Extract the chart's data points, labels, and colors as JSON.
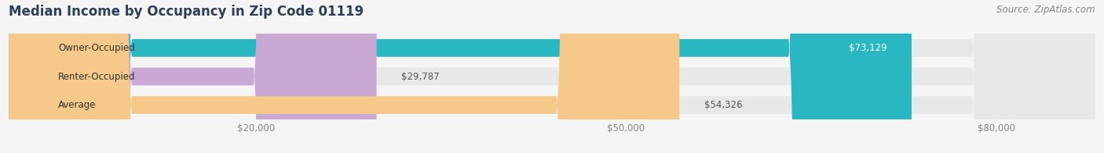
{
  "title": "Median Income by Occupancy in Zip Code 01119",
  "source": "Source: ZipAtlas.com",
  "categories": [
    "Owner-Occupied",
    "Renter-Occupied",
    "Average"
  ],
  "values": [
    73129,
    29787,
    54326
  ],
  "labels": [
    "$73,129",
    "$29,787",
    "$54,326"
  ],
  "bar_colors": [
    "#29b8c2",
    "#c9a8d4",
    "#f5c98a"
  ],
  "label_colors": [
    "white",
    "#555555",
    "#555555"
  ],
  "label_inside": [
    true,
    false,
    false
  ],
  "xmax": 88000,
  "xticks": [
    20000,
    50000,
    80000
  ],
  "xticklabels": [
    "$20,000",
    "$50,000",
    "$80,000"
  ],
  "background_color": "#f5f5f5",
  "bar_background_color": "#e8e8e8",
  "title_color": "#2e4057",
  "title_fontsize": 12,
  "source_fontsize": 8.5,
  "label_fontsize": 8.5,
  "category_fontsize": 8.5
}
